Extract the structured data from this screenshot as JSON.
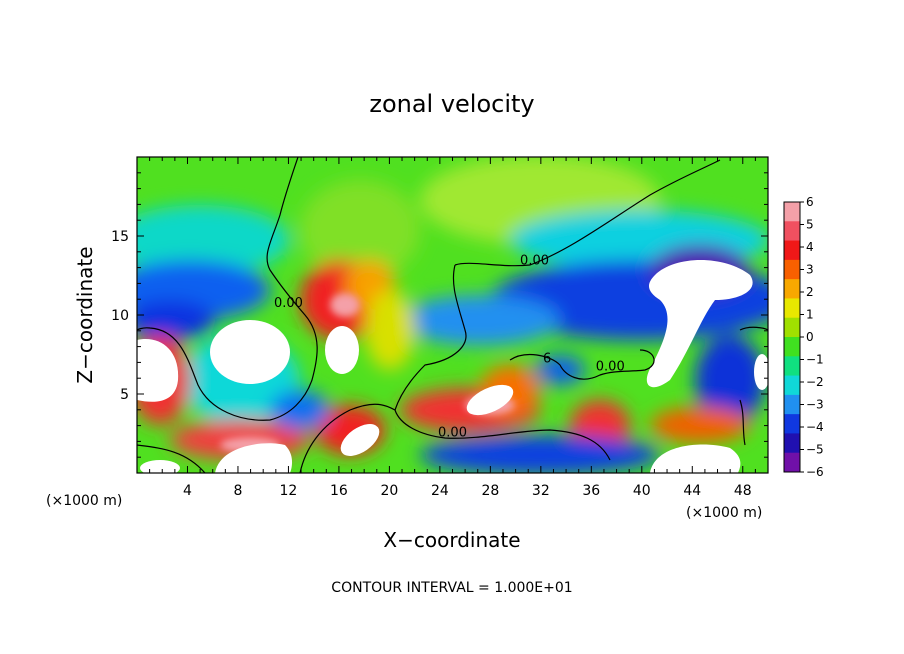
{
  "chart_data": {
    "type": "heatmap",
    "title": "zonal velocity",
    "xlabel": "X−coordinate",
    "ylabel": "Z−coordinate",
    "x_unit": "(×1000 m)",
    "y_unit": "(×1000 m)",
    "xlim": [
      0,
      50
    ],
    "ylim": [
      0,
      20
    ],
    "x_ticks": [
      4,
      8,
      12,
      16,
      20,
      24,
      28,
      32,
      36,
      40,
      44,
      48
    ],
    "y_ticks": [
      5,
      10,
      15
    ],
    "colorbar": {
      "ticks": [
        6,
        5,
        4,
        3,
        2,
        1,
        0,
        -1,
        -2,
        -3,
        -4,
        -5,
        -6
      ],
      "range": [
        -6,
        6
      ],
      "colors": [
        "#f4a0a8",
        "#f05060",
        "#f01818",
        "#f86000",
        "#f8a800",
        "#e8e800",
        "#a0e000",
        "#40e020",
        "#10e080",
        "#10d8d8",
        "#2090f0",
        "#1038e0",
        "#2010b0",
        "#7010a8"
      ]
    },
    "contour_labels": [
      {
        "text": "0.00",
        "x": 31.5,
        "y": 13.2
      },
      {
        "text": "0.00",
        "x": 12.0,
        "y": 10.5
      },
      {
        "text": "0.00",
        "x": 25.0,
        "y": 2.3
      },
      {
        "text": "0.00",
        "x": 37.5,
        "y": 6.5
      },
      {
        "text": "6",
        "x": 32.5,
        "y": 7.0
      }
    ],
    "annotation": "CONTOUR INTERVAL = 1.000E+01"
  }
}
